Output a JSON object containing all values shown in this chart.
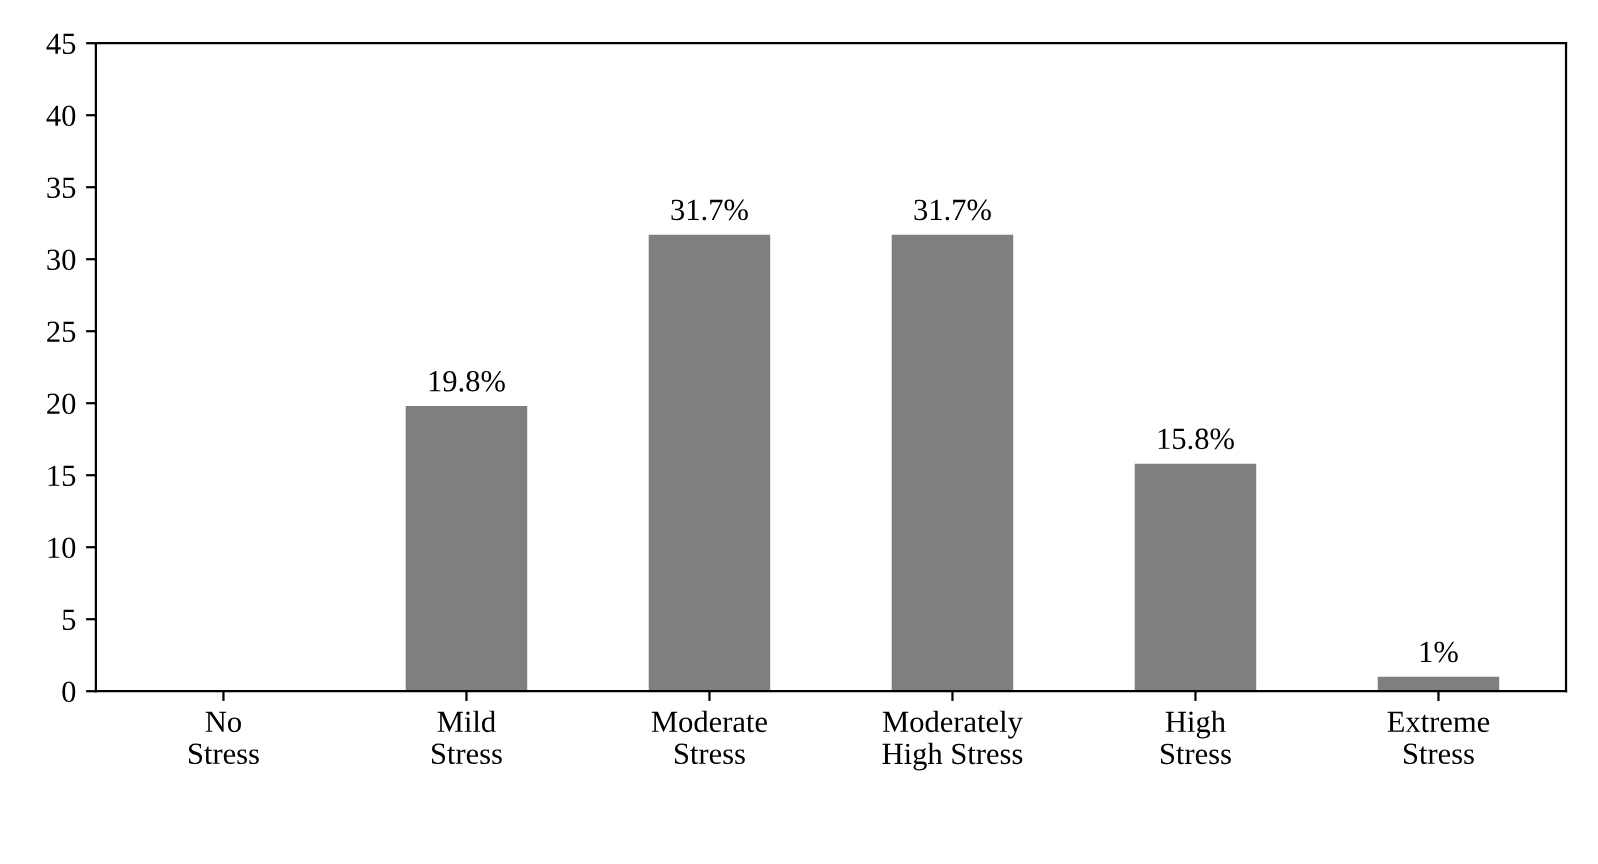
{
  "chart_data": {
    "type": "bar",
    "categories": [
      "No\nStress",
      "Mild\nStress",
      "Moderate\nStress",
      "Moderately\nHigh Stress",
      "High\nStress",
      "Extreme\nStress"
    ],
    "values": [
      0,
      19.8,
      31.7,
      31.7,
      15.8,
      1
    ],
    "value_labels": [
      null,
      "19.8%",
      "31.7%",
      "31.7%",
      "15.8%",
      "1%"
    ],
    "color": "#7f7f7f",
    "ylim": [
      0,
      45
    ],
    "yticks": [
      0,
      5,
      10,
      15,
      20,
      25,
      30,
      35,
      40,
      45
    ]
  }
}
